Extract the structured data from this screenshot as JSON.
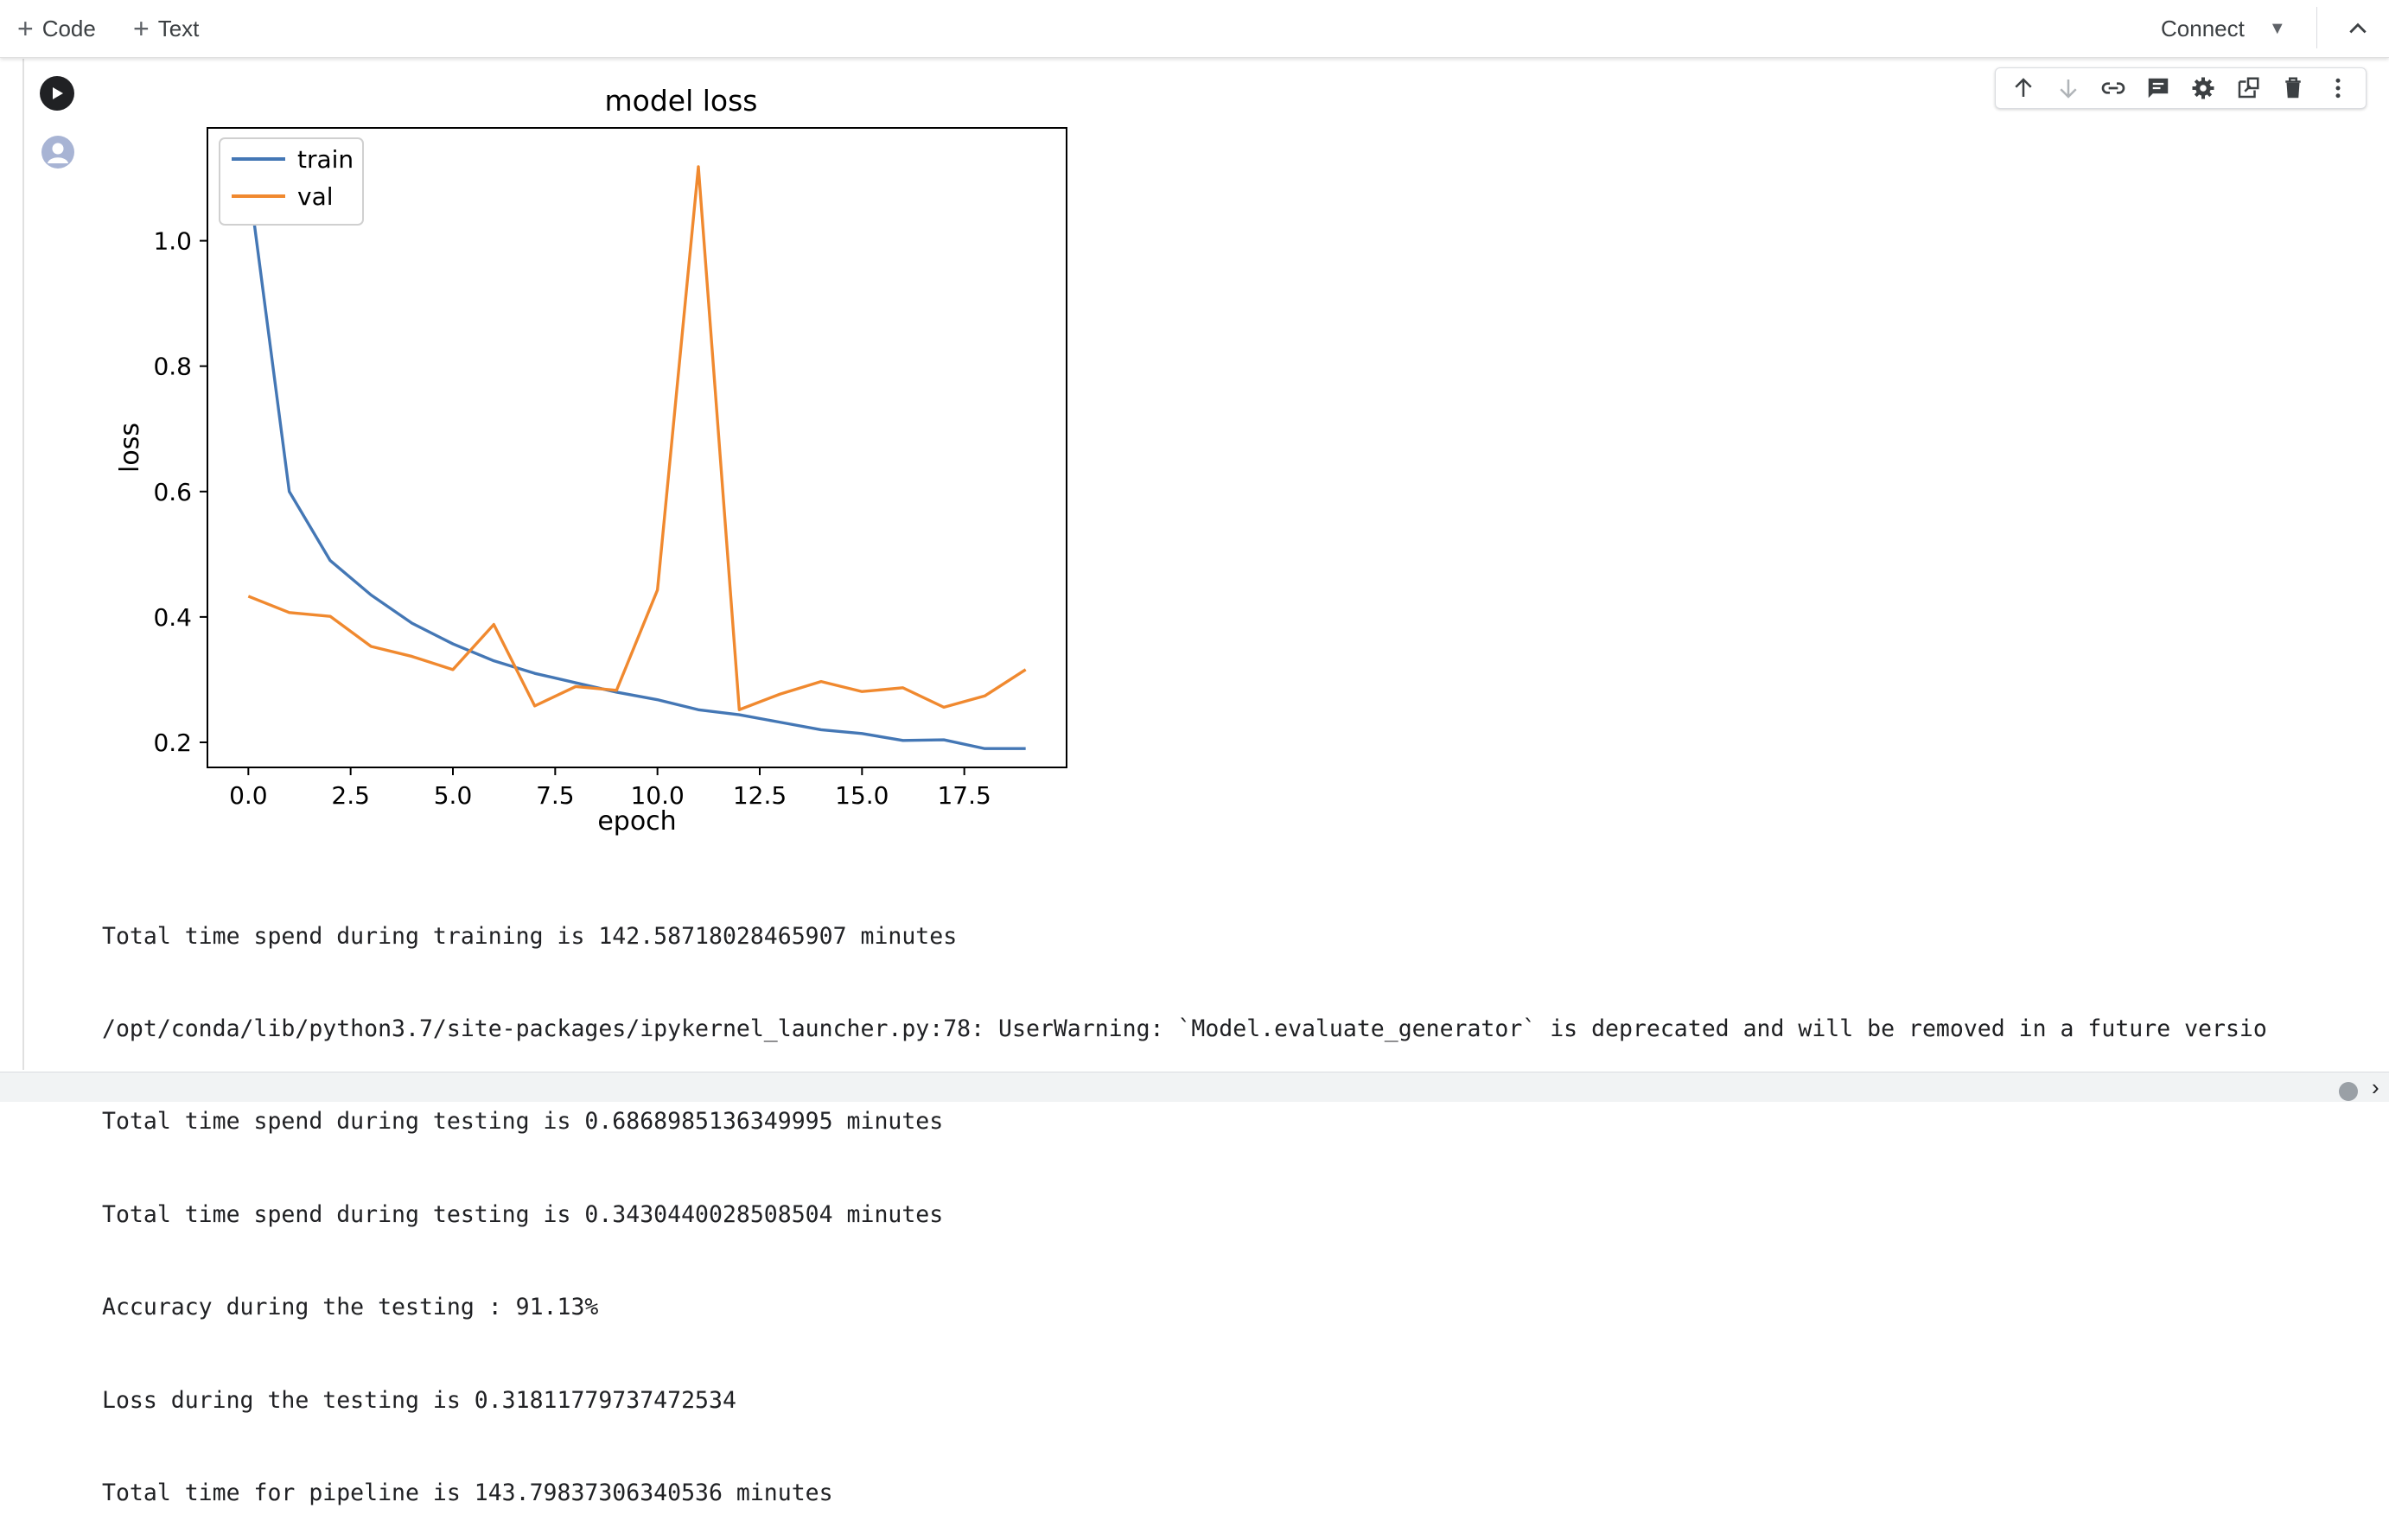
{
  "toolbar": {
    "add_code_label": "Code",
    "add_text_label": "Text",
    "connect_label": "Connect"
  },
  "cell_toolbar_icons": [
    "move-up-icon",
    "move-down-icon",
    "link-icon",
    "comment-icon",
    "settings-icon",
    "mirror-cell-icon",
    "delete-icon",
    "more-options-icon"
  ],
  "chart_data": {
    "type": "line",
    "title": "model loss",
    "xlabel": "epoch",
    "ylabel": "loss",
    "x": [
      0,
      1,
      2,
      3,
      4,
      5,
      6,
      7,
      8,
      9,
      10,
      11,
      12,
      13,
      14,
      15,
      16,
      17,
      18,
      19
    ],
    "xlim": [
      -1.0,
      20.0
    ],
    "ylim": [
      0.16,
      1.18
    ],
    "xticks": [
      "0.0",
      "2.5",
      "5.0",
      "7.5",
      "10.0",
      "12.5",
      "15.0",
      "17.5"
    ],
    "xtick_values": [
      0,
      2.5,
      5,
      7.5,
      10,
      12.5,
      15,
      17.5
    ],
    "yticks": [
      "0.2",
      "0.4",
      "0.6",
      "0.8",
      "1.0"
    ],
    "ytick_values": [
      0.2,
      0.4,
      0.6,
      0.8,
      1.0
    ],
    "legend_position": "upper left",
    "series": [
      {
        "name": "train",
        "color": "#4477b5",
        "values": [
          1.1,
          0.6,
          0.49,
          0.435,
          0.39,
          0.357,
          0.33,
          0.31,
          0.295,
          0.28,
          0.268,
          0.252,
          0.244,
          0.232,
          0.22,
          0.214,
          0.203,
          0.204,
          0.19,
          0.19
        ]
      },
      {
        "name": "val",
        "color": "#f0892f",
        "values": [
          0.433,
          0.407,
          0.401,
          0.353,
          0.337,
          0.316,
          0.388,
          0.258,
          0.289,
          0.283,
          0.443,
          1.118,
          0.252,
          0.277,
          0.297,
          0.281,
          0.287,
          0.256,
          0.274,
          0.316
        ]
      }
    ]
  },
  "output_lines": [
    "Total time spend during training is 142.58718028465907 minutes",
    "/opt/conda/lib/python3.7/site-packages/ipykernel_launcher.py:78: UserWarning: `Model.evaluate_generator` is deprecated and will be removed in a future versio",
    "Total time spend during testing is 0.6868985136349995 minutes",
    "Total time spend during testing is 0.3430440028508504 minutes",
    "Accuracy during the testing : 91.13%",
    "Loss during the testing is 0.31811779737472534",
    "Total time for pipeline is 143.79837306340536 minutes"
  ]
}
